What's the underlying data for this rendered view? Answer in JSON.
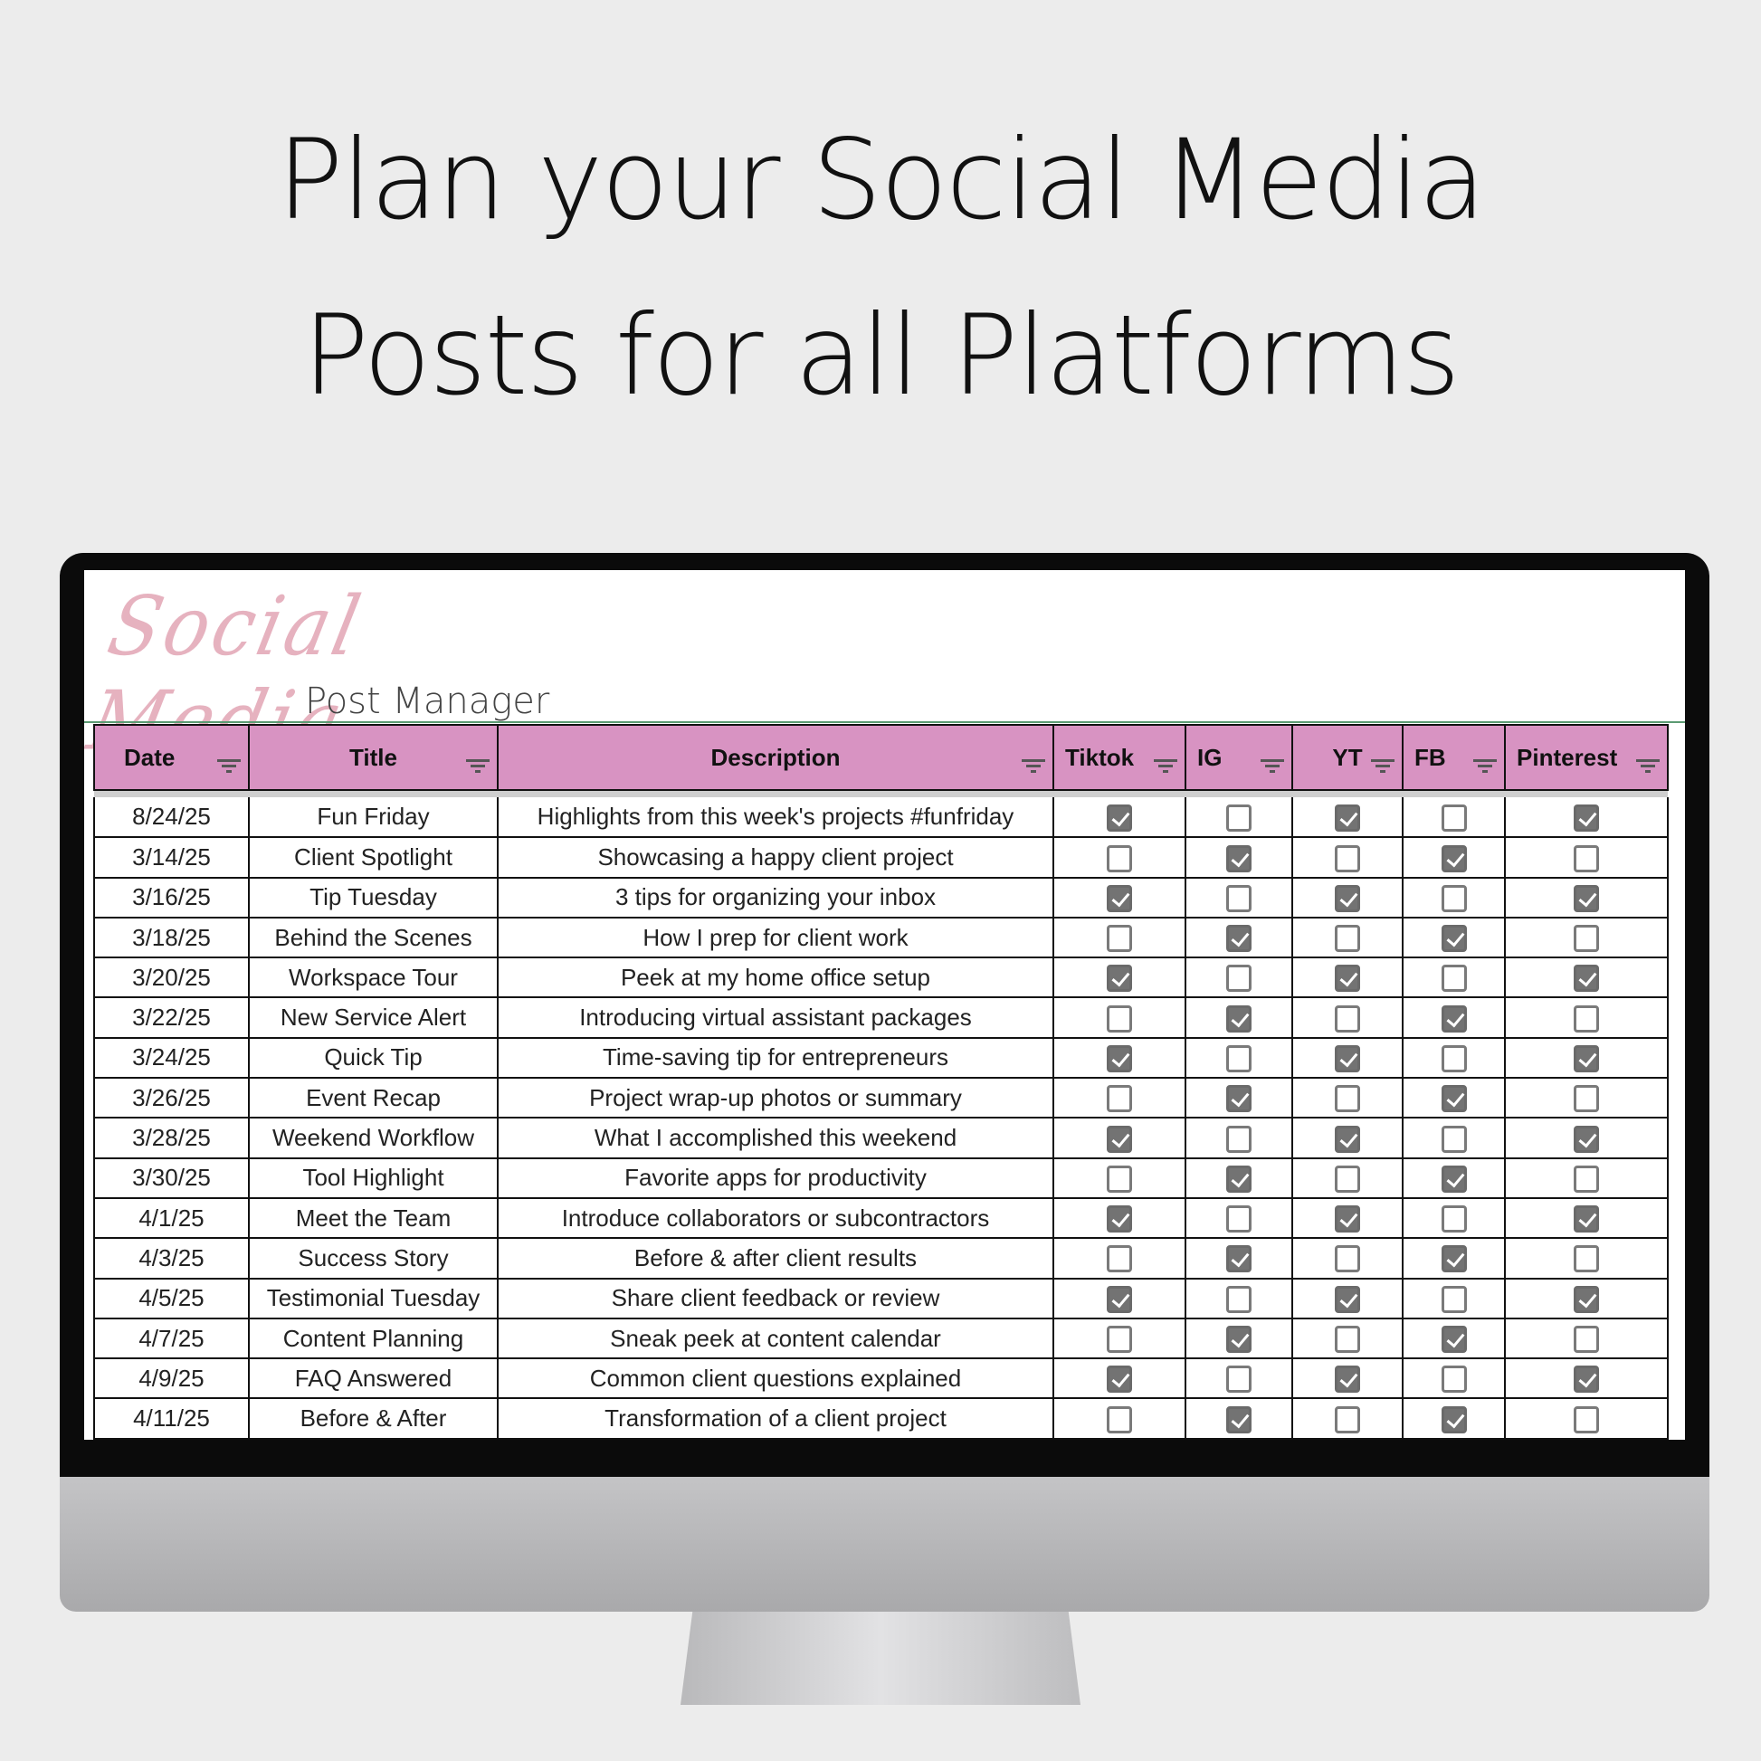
{
  "headline": {
    "line1": "Plan your Social Media",
    "line2": "Posts for all Platforms"
  },
  "logo": {
    "script": "Social Media",
    "subtitle": "Post Manager",
    "color": "#e6b2bf"
  },
  "colors": {
    "header": "#d893c2",
    "checked": "#737373"
  },
  "columns": [
    "Date",
    "Title",
    "Description",
    "Tiktok",
    "IG",
    "YT",
    "FB",
    "Pinterest"
  ],
  "rows": [
    {
      "date": "8/24/25",
      "title": "Fun Friday",
      "desc": "Highlights from this week's projects #funfriday",
      "checks": [
        true,
        false,
        true,
        false,
        true
      ]
    },
    {
      "date": "3/14/25",
      "title": "Client Spotlight",
      "desc": "Showcasing a happy client project",
      "checks": [
        false,
        true,
        false,
        true,
        false
      ]
    },
    {
      "date": "3/16/25",
      "title": "Tip Tuesday",
      "desc": "3 tips for organizing your inbox",
      "checks": [
        true,
        false,
        true,
        false,
        true
      ]
    },
    {
      "date": "3/18/25",
      "title": "Behind the Scenes",
      "desc": "How I prep for client work",
      "checks": [
        false,
        true,
        false,
        true,
        false
      ]
    },
    {
      "date": "3/20/25",
      "title": "Workspace Tour",
      "desc": "Peek at my home office setup",
      "checks": [
        true,
        false,
        true,
        false,
        true
      ]
    },
    {
      "date": "3/22/25",
      "title": "New Service Alert",
      "desc": "Introducing virtual assistant packages",
      "checks": [
        false,
        true,
        false,
        true,
        false
      ]
    },
    {
      "date": "3/24/25",
      "title": "Quick Tip",
      "desc": "Time-saving tip for entrepreneurs",
      "checks": [
        true,
        false,
        true,
        false,
        true
      ]
    },
    {
      "date": "3/26/25",
      "title": "Event Recap",
      "desc": "Project wrap-up photos or summary",
      "checks": [
        false,
        true,
        false,
        true,
        false
      ]
    },
    {
      "date": "3/28/25",
      "title": "Weekend Workflow",
      "desc": "What I accomplished this weekend",
      "checks": [
        true,
        false,
        true,
        false,
        true
      ]
    },
    {
      "date": "3/30/25",
      "title": "Tool Highlight",
      "desc": "Favorite apps for productivity",
      "checks": [
        false,
        true,
        false,
        true,
        false
      ]
    },
    {
      "date": "4/1/25",
      "title": "Meet the Team",
      "desc": "Introduce collaborators or subcontractors",
      "checks": [
        true,
        false,
        true,
        false,
        true
      ]
    },
    {
      "date": "4/3/25",
      "title": "Success Story",
      "desc": "Before & after client results",
      "checks": [
        false,
        true,
        false,
        true,
        false
      ]
    },
    {
      "date": "4/5/25",
      "title": "Testimonial Tuesday",
      "desc": "Share client feedback or review",
      "checks": [
        true,
        false,
        true,
        false,
        true
      ]
    },
    {
      "date": "4/7/25",
      "title": "Content Planning",
      "desc": "Sneak peek at content calendar",
      "checks": [
        false,
        true,
        false,
        true,
        false
      ]
    },
    {
      "date": "4/9/25",
      "title": "FAQ Answered",
      "desc": "Common client questions explained",
      "checks": [
        true,
        false,
        true,
        false,
        true
      ]
    },
    {
      "date": "4/11/25",
      "title": "Before & After",
      "desc": "Transformation of a client project",
      "checks": [
        false,
        true,
        false,
        true,
        false
      ]
    }
  ]
}
